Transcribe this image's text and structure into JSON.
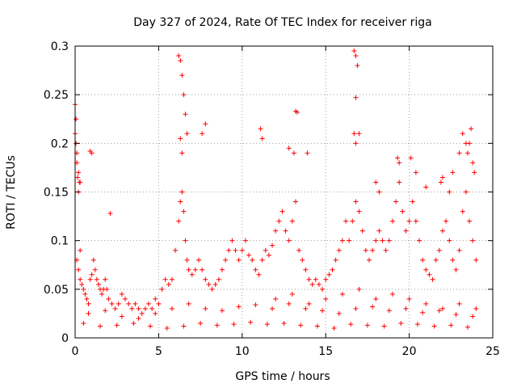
{
  "chart_data": {
    "type": "scatter",
    "title": "Day 327 of 2024, Rate Of TEC Index for receiver riga",
    "xlabel": "GPS time / hours",
    "ylabel": "ROTI / TECUs",
    "xlim": [
      0,
      25
    ],
    "ylim": [
      0,
      0.3
    ],
    "xticks": [
      0,
      5,
      10,
      15,
      20,
      25
    ],
    "xtick_labels": [
      "0",
      "5",
      "10",
      "15",
      "20",
      "25"
    ],
    "yticks": [
      0,
      0.05,
      0.1,
      0.15,
      0.2,
      0.25,
      0.3
    ],
    "ytick_labels": [
      "0",
      "0.05",
      "0.1",
      "0.15",
      "0.2",
      "0.25",
      "0.3"
    ],
    "grid": true,
    "marker": "plus",
    "marker_color": "#ff0000",
    "series": [
      {
        "x": [
          0.0,
          0.05,
          0.1,
          0.15,
          0.2,
          0.25,
          0.3,
          0.1,
          0.2,
          0.3,
          0.4,
          0.5,
          0.6,
          0.7,
          0.8,
          0.9,
          1.0,
          1.1,
          1.2,
          1.3,
          1.4,
          1.5,
          1.6,
          1.7,
          1.8,
          1.9,
          2.0,
          2.2,
          2.4,
          2.6,
          2.8,
          3.0,
          3.2,
          3.4,
          3.6,
          3.8,
          4.0,
          4.2,
          4.4,
          4.6,
          4.8,
          5.0,
          5.2,
          5.4,
          5.6,
          5.8,
          6.0,
          6.2,
          6.3,
          6.4,
          6.5,
          6.6,
          6.7,
          6.8,
          7.0,
          7.2,
          7.4,
          7.6,
          7.8,
          8.0,
          8.2,
          8.4,
          8.6,
          8.8,
          9.0,
          9.2,
          9.4,
          9.6,
          9.8,
          10.0,
          10.2,
          10.4,
          10.6,
          10.8,
          11.0,
          11.2,
          11.4,
          11.6,
          11.8,
          12.0,
          12.2,
          12.4,
          12.6,
          12.8,
          13.0,
          13.2,
          13.4,
          13.6,
          13.8,
          14.0,
          14.2,
          14.4,
          14.6,
          14.8,
          15.0,
          15.2,
          15.4,
          15.6,
          15.8,
          16.0,
          16.2,
          16.4,
          16.6,
          16.8,
          17.0,
          17.2,
          17.4,
          17.6,
          17.8,
          18.0,
          18.2,
          18.4,
          18.6,
          18.8,
          19.0,
          19.2,
          19.4,
          19.6,
          19.8,
          20.0,
          20.2,
          20.4,
          20.6,
          20.8,
          21.0,
          21.2,
          21.4,
          21.6,
          21.8,
          22.0,
          22.2,
          22.4,
          22.6,
          22.8,
          23.0,
          23.2,
          23.4,
          23.6,
          23.8,
          24.0,
          0.0,
          0.05,
          0.1,
          0.2,
          0.3,
          0.9,
          1.0,
          2.1,
          6.2,
          6.3,
          6.4,
          6.5,
          6.6,
          6.7,
          6.3,
          6.4,
          7.6,
          7.8,
          11.1,
          11.2,
          12.8,
          13.1,
          13.2,
          13.3,
          13.9,
          16.7,
          16.8,
          16.9,
          16.8,
          17.0,
          16.7,
          16.8,
          19.3,
          19.4,
          18.0,
          18.2,
          20.1,
          20.4,
          21.0,
          21.9,
          22.0,
          22.4,
          22.6,
          23.0,
          23.2,
          23.4,
          23.5,
          23.6,
          23.7,
          23.8,
          23.9,
          12.0,
          13.0,
          14.0,
          15.0,
          16.0,
          17.0,
          18.0,
          19.0,
          20.0,
          21.0,
          22.0,
          23.0,
          24.0,
          0.5,
          1.5,
          2.5,
          3.5,
          4.5,
          5.5,
          6.5,
          7.5,
          8.5,
          9.5,
          10.5,
          11.5,
          12.5,
          13.5,
          14.5,
          15.5,
          16.5,
          17.5,
          18.5,
          19.5,
          20.5,
          21.5,
          22.5,
          23.5,
          0.8,
          1.8,
          2.8,
          3.8,
          4.8,
          5.8,
          6.8,
          7.8,
          8.8,
          9.8,
          10.8,
          11.8,
          12.8,
          13.8,
          14.8,
          15.8,
          16.8,
          17.8,
          18.8,
          19.8,
          20.8,
          21.8,
          22.8,
          23.8
        ],
        "y": [
          0.24,
          0.225,
          0.19,
          0.165,
          0.15,
          0.16,
          0.09,
          0.08,
          0.07,
          0.06,
          0.055,
          0.05,
          0.045,
          0.04,
          0.035,
          0.06,
          0.065,
          0.08,
          0.07,
          0.06,
          0.055,
          0.05,
          0.045,
          0.05,
          0.06,
          0.05,
          0.04,
          0.035,
          0.03,
          0.035,
          0.045,
          0.04,
          0.035,
          0.03,
          0.035,
          0.03,
          0.025,
          0.03,
          0.035,
          0.03,
          0.04,
          0.035,
          0.05,
          0.06,
          0.055,
          0.06,
          0.09,
          0.12,
          0.14,
          0.15,
          0.13,
          0.1,
          0.08,
          0.07,
          0.065,
          0.07,
          0.08,
          0.07,
          0.06,
          0.055,
          0.05,
          0.055,
          0.06,
          0.07,
          0.08,
          0.09,
          0.1,
          0.09,
          0.08,
          0.09,
          0.1,
          0.085,
          0.08,
          0.07,
          0.065,
          0.08,
          0.09,
          0.085,
          0.095,
          0.11,
          0.12,
          0.13,
          0.11,
          0.1,
          0.12,
          0.14,
          0.09,
          0.08,
          0.07,
          0.06,
          0.055,
          0.06,
          0.055,
          0.05,
          0.06,
          0.065,
          0.07,
          0.08,
          0.09,
          0.1,
          0.12,
          0.1,
          0.12,
          0.14,
          0.13,
          0.11,
          0.09,
          0.08,
          0.09,
          0.1,
          0.11,
          0.1,
          0.09,
          0.1,
          0.12,
          0.14,
          0.16,
          0.13,
          0.11,
          0.12,
          0.14,
          0.12,
          0.1,
          0.08,
          0.07,
          0.065,
          0.06,
          0.08,
          0.09,
          0.11,
          0.12,
          0.1,
          0.08,
          0.07,
          0.09,
          0.13,
          0.15,
          0.12,
          0.1,
          0.08,
          0.21,
          0.2,
          0.18,
          0.17,
          0.16,
          0.192,
          0.19,
          0.128,
          0.29,
          0.285,
          0.27,
          0.25,
          0.23,
          0.21,
          0.205,
          0.19,
          0.21,
          0.22,
          0.215,
          0.205,
          0.195,
          0.19,
          0.233,
          0.232,
          0.19,
          0.295,
          0.29,
          0.28,
          0.247,
          0.21,
          0.21,
          0.2,
          0.185,
          0.18,
          0.16,
          0.15,
          0.185,
          0.17,
          0.155,
          0.16,
          0.165,
          0.15,
          0.17,
          0.19,
          0.21,
          0.2,
          0.19,
          0.2,
          0.215,
          0.18,
          0.17,
          0.04,
          0.045,
          0.035,
          0.04,
          0.045,
          0.05,
          0.04,
          0.045,
          0.04,
          0.035,
          0.03,
          0.035,
          0.03,
          0.015,
          0.012,
          0.013,
          0.015,
          0.012,
          0.01,
          0.012,
          0.015,
          0.013,
          0.014,
          0.016,
          0.014,
          0.015,
          0.013,
          0.012,
          0.01,
          0.014,
          0.013,
          0.012,
          0.015,
          0.014,
          0.012,
          0.013,
          0.011,
          0.025,
          0.028,
          0.022,
          0.02,
          0.025,
          0.03,
          0.035,
          0.03,
          0.028,
          0.032,
          0.034,
          0.03,
          0.035,
          0.03,
          0.028,
          0.025,
          0.03,
          0.032,
          0.028,
          0.03,
          0.026,
          0.028,
          0.024,
          0.022
        ]
      }
    ]
  }
}
